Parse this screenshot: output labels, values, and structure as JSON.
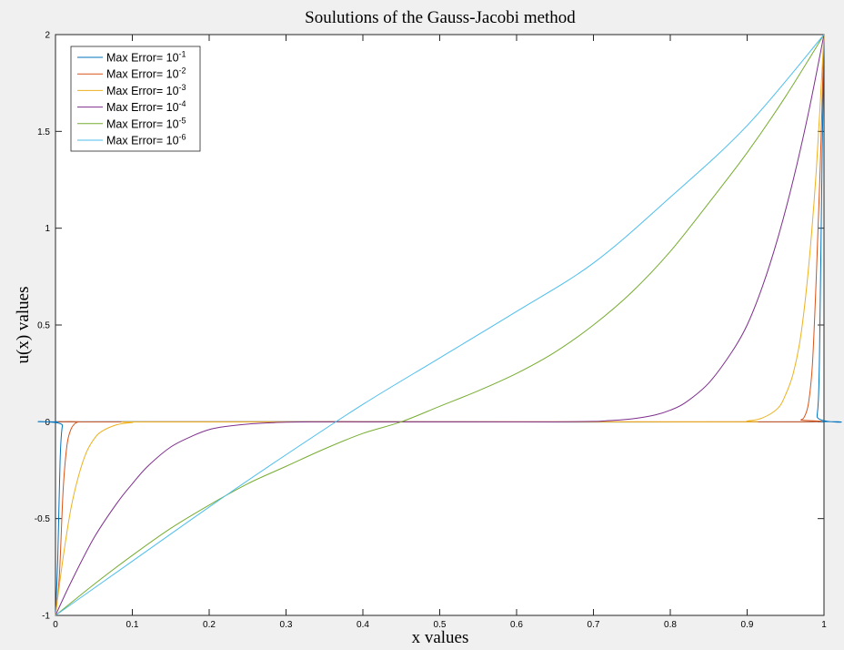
{
  "chart_data": {
    "type": "line",
    "title": "Soulutions of the Gauss-Jacobi method",
    "xlabel": "x values",
    "ylabel": "u(x) values",
    "xlim": [
      0,
      1
    ],
    "ylim": [
      -1,
      2
    ],
    "xticks": [
      "0",
      "0.1",
      "0.2",
      "0.3",
      "0.4",
      "0.5",
      "0.6",
      "0.7",
      "0.8",
      "0.9",
      "1"
    ],
    "yticks": [
      "-1",
      "-0.5",
      "0",
      "0.5",
      "1",
      "1.5",
      "2"
    ],
    "grid": false,
    "legend_position": "top-left",
    "series": [
      {
        "name": "Max Error= 10",
        "exponent": "-1",
        "color": "#0072bd",
        "x": [
          0,
          0.003,
          0.006,
          0.009,
          0.015,
          0.5,
          0.985,
          0.991,
          0.994,
          0.997,
          1
        ],
        "y": [
          -1,
          -0.7,
          -0.2,
          -0.02,
          0,
          0,
          0,
          0.03,
          0.3,
          1.2,
          2
        ]
      },
      {
        "name": "Max Error= 10",
        "exponent": "-2",
        "color": "#d95319",
        "x": [
          0,
          0.005,
          0.01,
          0.015,
          0.02,
          0.025,
          0.03,
          0.04,
          0.5,
          0.96,
          0.97,
          0.975,
          0.98,
          0.985,
          0.99,
          0.995,
          1
        ],
        "y": [
          -1,
          -0.8,
          -0.35,
          -0.12,
          -0.04,
          -0.01,
          0,
          0,
          0,
          0,
          0.01,
          0.03,
          0.1,
          0.3,
          0.75,
          1.3,
          2
        ]
      },
      {
        "name": "Max Error= 10",
        "exponent": "-3",
        "color": "#edb120",
        "x": [
          0,
          0.01,
          0.02,
          0.03,
          0.04,
          0.05,
          0.06,
          0.08,
          0.1,
          0.12,
          0.5,
          0.88,
          0.9,
          0.92,
          0.94,
          0.95,
          0.96,
          0.97,
          0.98,
          0.99,
          1
        ],
        "y": [
          -1,
          -0.7,
          -0.45,
          -0.28,
          -0.16,
          -0.09,
          -0.05,
          -0.015,
          -0.004,
          0,
          0,
          0,
          0.004,
          0.02,
          0.07,
          0.14,
          0.25,
          0.45,
          0.8,
          1.3,
          2
        ]
      },
      {
        "name": "Max Error= 10",
        "exponent": "-4",
        "color": "#7e2f8e",
        "x": [
          0,
          0.02,
          0.05,
          0.08,
          0.1,
          0.12,
          0.15,
          0.18,
          0.2,
          0.22,
          0.25,
          0.28,
          0.3,
          0.35,
          0.4,
          0.5,
          0.6,
          0.65,
          0.7,
          0.72,
          0.75,
          0.78,
          0.8,
          0.82,
          0.85,
          0.88,
          0.9,
          0.92,
          0.94,
          0.96,
          0.98,
          1
        ],
        "y": [
          -1,
          -0.83,
          -0.6,
          -0.42,
          -0.32,
          -0.23,
          -0.13,
          -0.07,
          -0.04,
          -0.025,
          -0.012,
          -0.005,
          -0.002,
          0,
          0,
          0,
          0,
          0,
          0.002,
          0.006,
          0.015,
          0.035,
          0.06,
          0.1,
          0.2,
          0.36,
          0.5,
          0.7,
          0.95,
          1.25,
          1.6,
          2
        ]
      },
      {
        "name": "Max Error= 10",
        "exponent": "-5",
        "color": "#77ac30",
        "x": [
          0,
          0.05,
          0.1,
          0.15,
          0.2,
          0.25,
          0.3,
          0.35,
          0.4,
          0.45,
          0.5,
          0.55,
          0.6,
          0.65,
          0.7,
          0.75,
          0.8,
          0.85,
          0.9,
          0.95,
          1
        ],
        "y": [
          -1,
          -0.84,
          -0.69,
          -0.55,
          -0.43,
          -0.32,
          -0.23,
          -0.14,
          -0.06,
          0.0,
          0.08,
          0.16,
          0.25,
          0.36,
          0.5,
          0.67,
          0.88,
          1.13,
          1.39,
          1.68,
          2
        ]
      },
      {
        "name": "Max Error= 10",
        "exponent": "-6",
        "color": "#4dbeee",
        "x": [
          0,
          0.1,
          0.2,
          0.3,
          0.4,
          0.5,
          0.6,
          0.7,
          0.8,
          0.9,
          1
        ],
        "y": [
          -1,
          -0.72,
          -0.44,
          -0.17,
          0.09,
          0.33,
          0.57,
          0.82,
          1.16,
          1.53,
          2
        ]
      }
    ]
  }
}
